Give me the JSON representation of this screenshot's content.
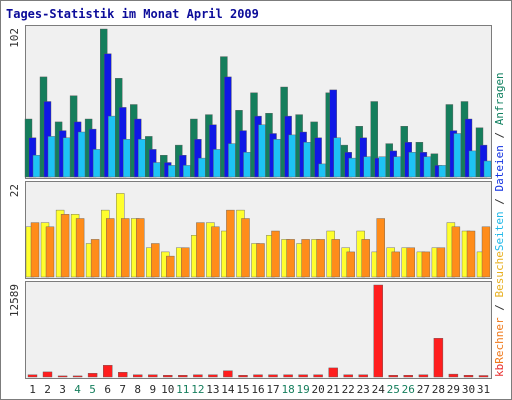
{
  "chart_data": {
    "type": "bar",
    "title": "Tages-Statistik im Monat April 2009",
    "days": [
      "1",
      "2",
      "3",
      "4",
      "5",
      "6",
      "7",
      "8",
      "9",
      "10",
      "11",
      "12",
      "13",
      "14",
      "15",
      "16",
      "17",
      "18",
      "19",
      "20",
      "21",
      "22",
      "23",
      "24",
      "25",
      "26",
      "27",
      "28",
      "29",
      "30",
      "31"
    ],
    "weekend_days": [
      "4",
      "5",
      "11",
      "12",
      "18",
      "19",
      "25",
      "26"
    ],
    "panels": [
      {
        "id": "top",
        "max_label": "102",
        "ylim": [
          0,
          102
        ],
        "series": [
          {
            "name": "Anfragen",
            "color": "#157e5c",
            "values": [
              40,
              69,
              38,
              56,
              40,
              102,
              68,
              50,
              28,
              15,
              22,
              40,
              43,
              83,
              46,
              58,
              44,
              62,
              43,
              38,
              58,
              22,
              35,
              52,
              23,
              35,
              24,
              16,
              50,
              52,
              34
            ]
          },
          {
            "name": "Dateien",
            "color": "#0f18e6",
            "values": [
              27,
              52,
              32,
              38,
              33,
              85,
              48,
              40,
              19,
              10,
              15,
              26,
              36,
              69,
              32,
              42,
              30,
              42,
              31,
              27,
              60,
              17,
              27,
              13,
              18,
              24,
              17,
              8,
              32,
              40,
              22
            ]
          },
          {
            "name": "Seiten",
            "color": "#1ec3f5",
            "values": [
              15,
              28,
              27,
              31,
              19,
              42,
              26,
              26,
              10,
              8,
              8,
              13,
              19,
              23,
              17,
              36,
              26,
              29,
              24,
              9,
              27,
              13,
              14,
              14,
              14,
              17,
              14,
              8,
              30,
              18,
              11
            ]
          }
        ]
      },
      {
        "id": "middle",
        "max_label": "22",
        "ylim": [
          0,
          22
        ],
        "series": [
          {
            "name": "Besuche",
            "color": "#ffff2e",
            "values": [
              12,
              13,
              16,
              15,
              8,
              16,
              20,
              14,
              7,
              6,
              7,
              10,
              13,
              11,
              16,
              8,
              10,
              9,
              8,
              9,
              11,
              7,
              11,
              6,
              7,
              7,
              6,
              7,
              13,
              11,
              6
            ]
          },
          {
            "name": "Rechner",
            "color": "#ff8c1a",
            "values": [
              13,
              12,
              15,
              14,
              9,
              14,
              14,
              14,
              8,
              5,
              7,
              13,
              12,
              16,
              14,
              8,
              11,
              9,
              9,
              9,
              9,
              6,
              9,
              14,
              6,
              7,
              6,
              7,
              12,
              11,
              12
            ]
          }
        ]
      },
      {
        "id": "bottom",
        "max_label": "12589",
        "ylim": [
          0,
          12589
        ],
        "series": [
          {
            "name": "kb",
            "color": "#ff1e1e",
            "values": [
              300,
              700,
              150,
              150,
              500,
              1600,
              650,
              300,
              300,
              250,
              250,
              300,
              300,
              850,
              250,
              300,
              300,
              300,
              300,
              300,
              1250,
              300,
              300,
              12589,
              250,
              250,
              300,
              5300,
              400,
              250,
              200
            ]
          }
        ]
      }
    ],
    "right_legend": [
      {
        "text": "kb",
        "color": "#e83030"
      },
      {
        "text": "Rechner",
        "color": "#f07818"
      },
      {
        "text": " / ",
        "color": "#303030"
      },
      {
        "text": "Besuche",
        "color": "#e8b020"
      },
      {
        "text": "Seiten",
        "color": "#20b8e8"
      },
      {
        "text": " / ",
        "color": "#303030"
      },
      {
        "text": "Dateien",
        "color": "#1030e0"
      },
      {
        "text": " / ",
        "color": "#303030"
      },
      {
        "text": "Anfragen",
        "color": "#108060"
      }
    ],
    "colors": {
      "background": "#ffffff",
      "plot_background": "#f0f0f0",
      "frame": "#7c7c7c",
      "title": "#0c0c9a",
      "day_label": "#2a2a2a",
      "weekend_label": "#157e5c",
      "max_label": "#303030"
    }
  }
}
